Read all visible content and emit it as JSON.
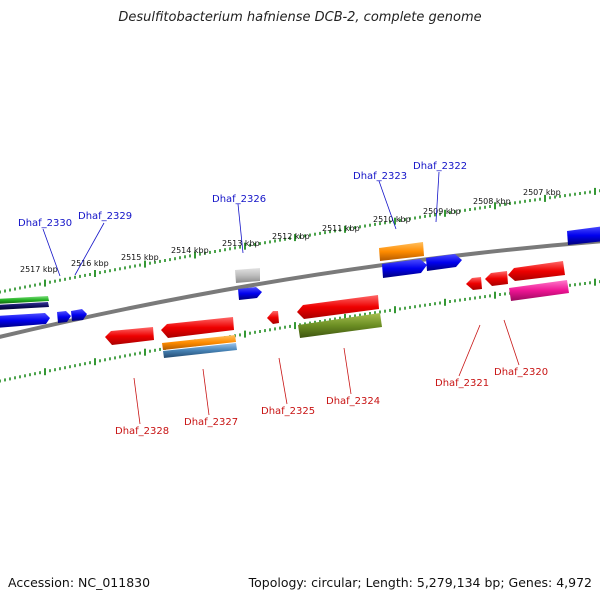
{
  "title": "Desulfitobacterium hafniense DCB-2, complete genome",
  "footer": {
    "accession": "Accession: NC_011830",
    "summary": "Topology: circular; Length: 5,279,134 bp; Genes: 4,972"
  },
  "colors": {
    "backbone": "#8a8a8a",
    "ruler": "#1e8c1e",
    "forward_label": "#1414c8",
    "reverse_label": "#c81414"
  },
  "ruler_ticks": [
    "2517 kbp",
    "2516 kbp",
    "2515 kbp",
    "2514 kbp",
    "2513 kbp",
    "2512 kbp",
    "2511 kbp",
    "2510 kbp",
    "2509 kbp",
    "2508 kbp",
    "2507 kbp"
  ],
  "forward_labels": [
    {
      "id": "Dhaf_2330",
      "color": "#1414c8"
    },
    {
      "id": "Dhaf_2329",
      "color": "#1414c8"
    },
    {
      "id": "Dhaf_2326",
      "color": "#1414c8"
    },
    {
      "id": "Dhaf_2323",
      "color": "#1414c8"
    },
    {
      "id": "Dhaf_2322",
      "color": "#1414c8"
    }
  ],
  "reverse_labels": [
    {
      "id": "Dhaf_2328",
      "color": "#c81414"
    },
    {
      "id": "Dhaf_2327",
      "color": "#c81414"
    },
    {
      "id": "Dhaf_2325",
      "color": "#c81414"
    },
    {
      "id": "Dhaf_2324",
      "color": "#c81414"
    },
    {
      "id": "Dhaf_2321",
      "color": "#c81414"
    },
    {
      "id": "Dhaf_2320",
      "color": "#c81414"
    }
  ]
}
